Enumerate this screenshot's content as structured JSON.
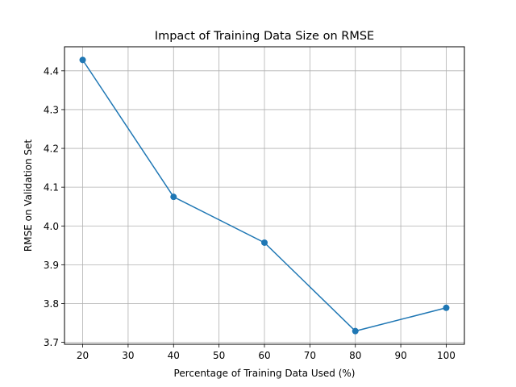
{
  "chart_data": {
    "type": "line",
    "title": "Impact of Training Data Size on RMSE",
    "xlabel": "Percentage of Training Data Used (%)",
    "ylabel": "RMSE on Validation Set",
    "x": [
      20,
      40,
      60,
      80,
      100
    ],
    "series": [
      {
        "values": [
          4.428,
          4.075,
          3.957,
          3.729,
          3.789
        ],
        "color": "#1f77b4",
        "marker": "circle"
      }
    ],
    "xlim": [
      16,
      104
    ],
    "ylim": [
      3.695,
      4.462
    ],
    "xticks": [
      20,
      30,
      40,
      50,
      60,
      70,
      80,
      90,
      100
    ],
    "xtick_labels": [
      "20",
      "30",
      "40",
      "50",
      "60",
      "70",
      "80",
      "90",
      "100"
    ],
    "yticks": [
      3.7,
      3.8,
      3.9,
      4.0,
      4.1,
      4.2,
      4.3,
      4.4
    ],
    "ytick_labels": [
      "3.7",
      "3.8",
      "3.9",
      "4.0",
      "4.1",
      "4.2",
      "4.3",
      "4.4"
    ],
    "grid": true,
    "colors": {
      "grid": "#b0b0b0",
      "axes": "#000000",
      "background": "#ffffff"
    }
  }
}
